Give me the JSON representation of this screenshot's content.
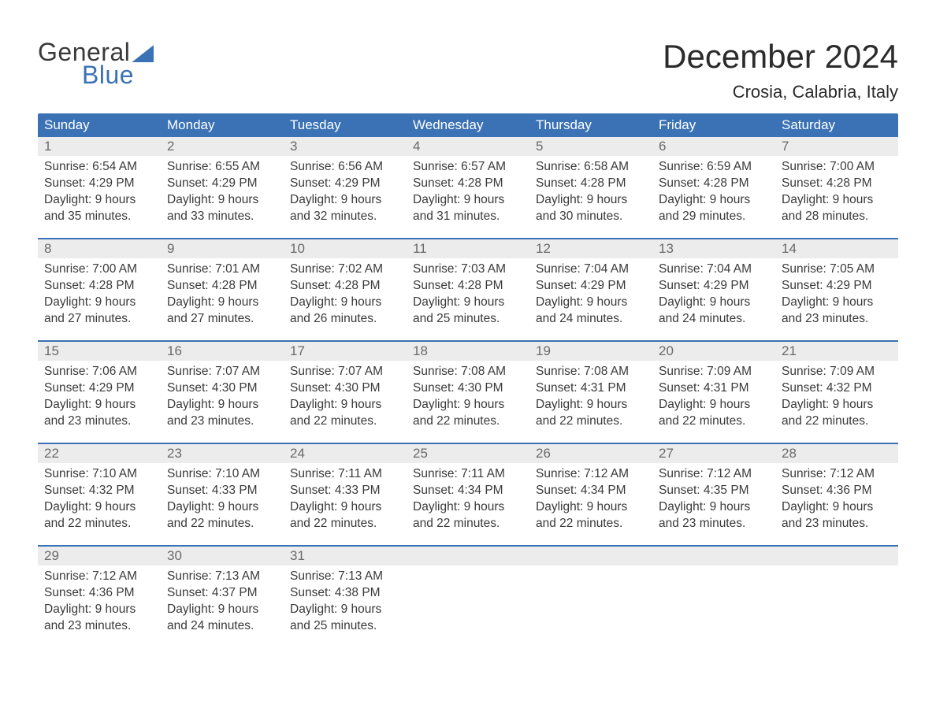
{
  "meta": {
    "brand_word1": "General",
    "brand_word2": "Blue",
    "brand_text_color": "#3a3a3a",
    "brand_accent_color": "#3a72b5",
    "background_color": "#ffffff"
  },
  "title": {
    "month_year": "December 2024",
    "location": "Crosia, Calabria, Italy",
    "title_fontsize_pt": 32,
    "location_fontsize_pt": 17,
    "title_color": "#2b2b2b"
  },
  "calendar": {
    "header_bg": "#3a72b5",
    "header_text_color": "#ffffff",
    "week_border_color": "#3a72b5",
    "daynum_bg": "#ececec",
    "daynum_color": "#6a6a6a",
    "body_text_color": "#3a3a3a",
    "body_fontsize_pt": 12,
    "days_of_week": [
      "Sunday",
      "Monday",
      "Tuesday",
      "Wednesday",
      "Thursday",
      "Friday",
      "Saturday"
    ],
    "weeks": [
      [
        {
          "n": "1",
          "sunrise": "Sunrise: 6:54 AM",
          "sunset": "Sunset: 4:29 PM",
          "d1": "Daylight: 9 hours",
          "d2": "and 35 minutes."
        },
        {
          "n": "2",
          "sunrise": "Sunrise: 6:55 AM",
          "sunset": "Sunset: 4:29 PM",
          "d1": "Daylight: 9 hours",
          "d2": "and 33 minutes."
        },
        {
          "n": "3",
          "sunrise": "Sunrise: 6:56 AM",
          "sunset": "Sunset: 4:29 PM",
          "d1": "Daylight: 9 hours",
          "d2": "and 32 minutes."
        },
        {
          "n": "4",
          "sunrise": "Sunrise: 6:57 AM",
          "sunset": "Sunset: 4:28 PM",
          "d1": "Daylight: 9 hours",
          "d2": "and 31 minutes."
        },
        {
          "n": "5",
          "sunrise": "Sunrise: 6:58 AM",
          "sunset": "Sunset: 4:28 PM",
          "d1": "Daylight: 9 hours",
          "d2": "and 30 minutes."
        },
        {
          "n": "6",
          "sunrise": "Sunrise: 6:59 AM",
          "sunset": "Sunset: 4:28 PM",
          "d1": "Daylight: 9 hours",
          "d2": "and 29 minutes."
        },
        {
          "n": "7",
          "sunrise": "Sunrise: 7:00 AM",
          "sunset": "Sunset: 4:28 PM",
          "d1": "Daylight: 9 hours",
          "d2": "and 28 minutes."
        }
      ],
      [
        {
          "n": "8",
          "sunrise": "Sunrise: 7:00 AM",
          "sunset": "Sunset: 4:28 PM",
          "d1": "Daylight: 9 hours",
          "d2": "and 27 minutes."
        },
        {
          "n": "9",
          "sunrise": "Sunrise: 7:01 AM",
          "sunset": "Sunset: 4:28 PM",
          "d1": "Daylight: 9 hours",
          "d2": "and 27 minutes."
        },
        {
          "n": "10",
          "sunrise": "Sunrise: 7:02 AM",
          "sunset": "Sunset: 4:28 PM",
          "d1": "Daylight: 9 hours",
          "d2": "and 26 minutes."
        },
        {
          "n": "11",
          "sunrise": "Sunrise: 7:03 AM",
          "sunset": "Sunset: 4:28 PM",
          "d1": "Daylight: 9 hours",
          "d2": "and 25 minutes."
        },
        {
          "n": "12",
          "sunrise": "Sunrise: 7:04 AM",
          "sunset": "Sunset: 4:29 PM",
          "d1": "Daylight: 9 hours",
          "d2": "and 24 minutes."
        },
        {
          "n": "13",
          "sunrise": "Sunrise: 7:04 AM",
          "sunset": "Sunset: 4:29 PM",
          "d1": "Daylight: 9 hours",
          "d2": "and 24 minutes."
        },
        {
          "n": "14",
          "sunrise": "Sunrise: 7:05 AM",
          "sunset": "Sunset: 4:29 PM",
          "d1": "Daylight: 9 hours",
          "d2": "and 23 minutes."
        }
      ],
      [
        {
          "n": "15",
          "sunrise": "Sunrise: 7:06 AM",
          "sunset": "Sunset: 4:29 PM",
          "d1": "Daylight: 9 hours",
          "d2": "and 23 minutes."
        },
        {
          "n": "16",
          "sunrise": "Sunrise: 7:07 AM",
          "sunset": "Sunset: 4:30 PM",
          "d1": "Daylight: 9 hours",
          "d2": "and 23 minutes."
        },
        {
          "n": "17",
          "sunrise": "Sunrise: 7:07 AM",
          "sunset": "Sunset: 4:30 PM",
          "d1": "Daylight: 9 hours",
          "d2": "and 22 minutes."
        },
        {
          "n": "18",
          "sunrise": "Sunrise: 7:08 AM",
          "sunset": "Sunset: 4:30 PM",
          "d1": "Daylight: 9 hours",
          "d2": "and 22 minutes."
        },
        {
          "n": "19",
          "sunrise": "Sunrise: 7:08 AM",
          "sunset": "Sunset: 4:31 PM",
          "d1": "Daylight: 9 hours",
          "d2": "and 22 minutes."
        },
        {
          "n": "20",
          "sunrise": "Sunrise: 7:09 AM",
          "sunset": "Sunset: 4:31 PM",
          "d1": "Daylight: 9 hours",
          "d2": "and 22 minutes."
        },
        {
          "n": "21",
          "sunrise": "Sunrise: 7:09 AM",
          "sunset": "Sunset: 4:32 PM",
          "d1": "Daylight: 9 hours",
          "d2": "and 22 minutes."
        }
      ],
      [
        {
          "n": "22",
          "sunrise": "Sunrise: 7:10 AM",
          "sunset": "Sunset: 4:32 PM",
          "d1": "Daylight: 9 hours",
          "d2": "and 22 minutes."
        },
        {
          "n": "23",
          "sunrise": "Sunrise: 7:10 AM",
          "sunset": "Sunset: 4:33 PM",
          "d1": "Daylight: 9 hours",
          "d2": "and 22 minutes."
        },
        {
          "n": "24",
          "sunrise": "Sunrise: 7:11 AM",
          "sunset": "Sunset: 4:33 PM",
          "d1": "Daylight: 9 hours",
          "d2": "and 22 minutes."
        },
        {
          "n": "25",
          "sunrise": "Sunrise: 7:11 AM",
          "sunset": "Sunset: 4:34 PM",
          "d1": "Daylight: 9 hours",
          "d2": "and 22 minutes."
        },
        {
          "n": "26",
          "sunrise": "Sunrise: 7:12 AM",
          "sunset": "Sunset: 4:34 PM",
          "d1": "Daylight: 9 hours",
          "d2": "and 22 minutes."
        },
        {
          "n": "27",
          "sunrise": "Sunrise: 7:12 AM",
          "sunset": "Sunset: 4:35 PM",
          "d1": "Daylight: 9 hours",
          "d2": "and 23 minutes."
        },
        {
          "n": "28",
          "sunrise": "Sunrise: 7:12 AM",
          "sunset": "Sunset: 4:36 PM",
          "d1": "Daylight: 9 hours",
          "d2": "and 23 minutes."
        }
      ],
      [
        {
          "n": "29",
          "sunrise": "Sunrise: 7:12 AM",
          "sunset": "Sunset: 4:36 PM",
          "d1": "Daylight: 9 hours",
          "d2": "and 23 minutes."
        },
        {
          "n": "30",
          "sunrise": "Sunrise: 7:13 AM",
          "sunset": "Sunset: 4:37 PM",
          "d1": "Daylight: 9 hours",
          "d2": "and 24 minutes."
        },
        {
          "n": "31",
          "sunrise": "Sunrise: 7:13 AM",
          "sunset": "Sunset: 4:38 PM",
          "d1": "Daylight: 9 hours",
          "d2": "and 25 minutes."
        },
        {
          "empty": true
        },
        {
          "empty": true
        },
        {
          "empty": true
        },
        {
          "empty": true
        }
      ]
    ]
  }
}
